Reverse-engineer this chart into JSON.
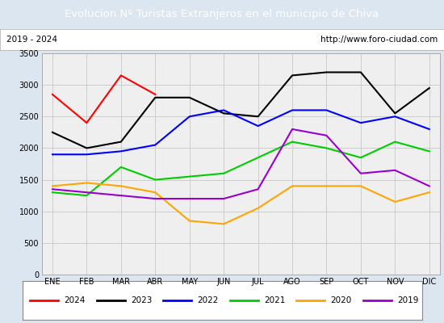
{
  "title": "Evolucion Nº Turistas Extranjeros en el municipio de Chiva",
  "subtitle_left": "2019 - 2024",
  "subtitle_right": "http://www.foro-ciudad.com",
  "x_labels": [
    "ENE",
    "FEB",
    "MAR",
    "ABR",
    "MAY",
    "JUN",
    "JUL",
    "AGO",
    "SEP",
    "OCT",
    "NOV",
    "DIC"
  ],
  "ylim": [
    0,
    3500
  ],
  "yticks": [
    0,
    500,
    1000,
    1500,
    2000,
    2500,
    3000,
    3500
  ],
  "series": {
    "2024": {
      "color": "#ff0000",
      "data": [
        2850,
        2400,
        3150,
        2850,
        null,
        null,
        null,
        null,
        null,
        null,
        null,
        null
      ]
    },
    "2023": {
      "color": "#000000",
      "data": [
        2250,
        2000,
        2100,
        2800,
        2800,
        2550,
        2500,
        3150,
        3200,
        3200,
        2550,
        2950
      ]
    },
    "2022": {
      "color": "#0000ff",
      "data": [
        1900,
        1900,
        1950,
        2050,
        2500,
        2600,
        2350,
        2600,
        2600,
        2400,
        2500,
        2300
      ]
    },
    "2021": {
      "color": "#00cc00",
      "data": [
        1300,
        1250,
        1700,
        1500,
        1550,
        1600,
        1850,
        2100,
        2000,
        1850,
        2100,
        1950
      ]
    },
    "2020": {
      "color": "#ffa500",
      "data": [
        1400,
        1450,
        1400,
        1300,
        850,
        800,
        1050,
        1400,
        1400,
        1400,
        1150,
        1300
      ]
    },
    "2019": {
      "color": "#9900cc",
      "data": [
        1350,
        1300,
        1250,
        1200,
        1200,
        1200,
        1350,
        2300,
        2200,
        1600,
        1650,
        1400
      ]
    }
  },
  "title_bg_color": "#4472c4",
  "title_font_color": "#ffffff",
  "plot_bg_color": "#efefef",
  "outer_bg_color": "#dce6f1",
  "grid_color": "#cccccc",
  "legend_order": [
    "2024",
    "2023",
    "2022",
    "2021",
    "2020",
    "2019"
  ]
}
